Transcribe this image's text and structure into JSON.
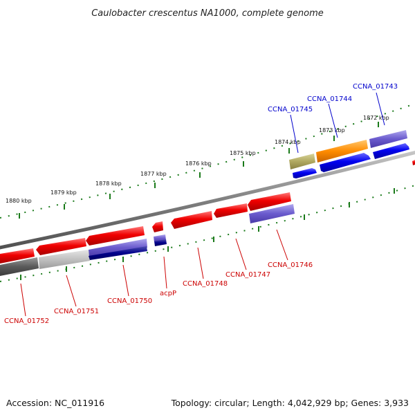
{
  "title": "Caulobacter crescentus NA1000, complete genome",
  "footer": {
    "accession": "Accession: NC_011916",
    "summary": "Topology: circular; Length: 4,042,929 bp; Genes: 3,933"
  },
  "scale_labels": [
    "1880 kbp",
    "1879 kbp",
    "1878 kbp",
    "1877 kbp",
    "1876 kbp",
    "1875 kbp",
    "1874 kbp",
    "1873 kbp",
    "1872 kbp"
  ],
  "genes_forward": [
    {
      "label": "CCNA_01745",
      "color": "#0000cc"
    },
    {
      "label": "CCNA_01744",
      "color": "#0000cc"
    },
    {
      "label": "CCNA_01743",
      "color": "#0000cc"
    }
  ],
  "genes_reverse": [
    {
      "label": "CCNA_01752",
      "color": "#cc0000"
    },
    {
      "label": "CCNA_01751",
      "color": "#cc0000"
    },
    {
      "label": "CCNA_01750",
      "color": "#cc0000"
    },
    {
      "label": "acpP",
      "color": "#cc0000"
    },
    {
      "label": "CCNA_01748",
      "color": "#cc0000"
    },
    {
      "label": "CCNA_01747",
      "color": "#cc0000"
    },
    {
      "label": "CCNA_01746",
      "color": "#cc0000"
    }
  ],
  "colors": {
    "cds_forward": "#0000ee",
    "cds_reverse": "#ee0000",
    "backbone": "#808080",
    "tick": "#1a7a1a"
  }
}
